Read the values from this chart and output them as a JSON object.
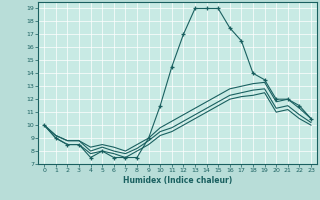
{
  "xlabel": "Humidex (Indice chaleur)",
  "background_color": "#b8ddd8",
  "grid_color": "#ffffff",
  "line_color": "#1a6060",
  "axis_bg_color": "#c8eae4",
  "xlim": [
    -0.5,
    23.5
  ],
  "ylim": [
    7,
    19.5
  ],
  "yticks": [
    7,
    8,
    9,
    10,
    11,
    12,
    13,
    14,
    15,
    16,
    17,
    18,
    19
  ],
  "xticks": [
    0,
    1,
    2,
    3,
    4,
    5,
    6,
    7,
    8,
    9,
    10,
    11,
    12,
    13,
    14,
    15,
    16,
    17,
    18,
    19,
    20,
    21,
    22,
    23
  ],
  "series": [
    {
      "x": [
        0,
        1,
        2,
        3,
        4,
        5,
        6,
        7,
        8,
        9,
        10,
        11,
        12,
        13,
        14,
        15,
        16,
        17,
        18,
        19,
        20,
        21,
        22,
        23
      ],
      "y": [
        10.0,
        9.0,
        8.5,
        8.5,
        7.5,
        8.0,
        7.5,
        7.5,
        7.5,
        9.0,
        11.5,
        14.5,
        17.0,
        19.0,
        19.0,
        19.0,
        17.5,
        16.5,
        14.0,
        13.5,
        12.0,
        12.0,
        11.5,
        10.5
      ],
      "marker": "+"
    },
    {
      "x": [
        0,
        1,
        2,
        3,
        4,
        5,
        6,
        7,
        8,
        9,
        10,
        11,
        12,
        13,
        14,
        15,
        16,
        17,
        18,
        19,
        20,
        21,
        22,
        23
      ],
      "y": [
        10.0,
        9.2,
        8.8,
        8.8,
        8.3,
        8.5,
        8.3,
        8.0,
        8.5,
        9.0,
        9.8,
        10.3,
        10.8,
        11.3,
        11.8,
        12.3,
        12.8,
        13.0,
        13.2,
        13.3,
        11.8,
        12.0,
        11.3,
        10.5
      ],
      "marker": null
    },
    {
      "x": [
        0,
        1,
        2,
        3,
        4,
        5,
        6,
        7,
        8,
        9,
        10,
        11,
        12,
        13,
        14,
        15,
        16,
        17,
        18,
        19,
        20,
        21,
        22,
        23
      ],
      "y": [
        10.0,
        9.2,
        8.8,
        8.8,
        8.0,
        8.3,
        8.0,
        7.8,
        8.2,
        8.8,
        9.5,
        9.8,
        10.3,
        10.8,
        11.3,
        11.8,
        12.3,
        12.5,
        12.7,
        12.8,
        11.3,
        11.5,
        10.8,
        10.2
      ],
      "marker": null
    },
    {
      "x": [
        0,
        1,
        2,
        3,
        4,
        5,
        6,
        7,
        8,
        9,
        10,
        11,
        12,
        13,
        14,
        15,
        16,
        17,
        18,
        19,
        20,
        21,
        22,
        23
      ],
      "y": [
        10.0,
        9.0,
        8.5,
        8.5,
        7.8,
        8.0,
        7.8,
        7.5,
        8.0,
        8.5,
        9.2,
        9.5,
        10.0,
        10.5,
        11.0,
        11.5,
        12.0,
        12.2,
        12.3,
        12.5,
        11.0,
        11.2,
        10.5,
        10.0
      ],
      "marker": null
    }
  ]
}
